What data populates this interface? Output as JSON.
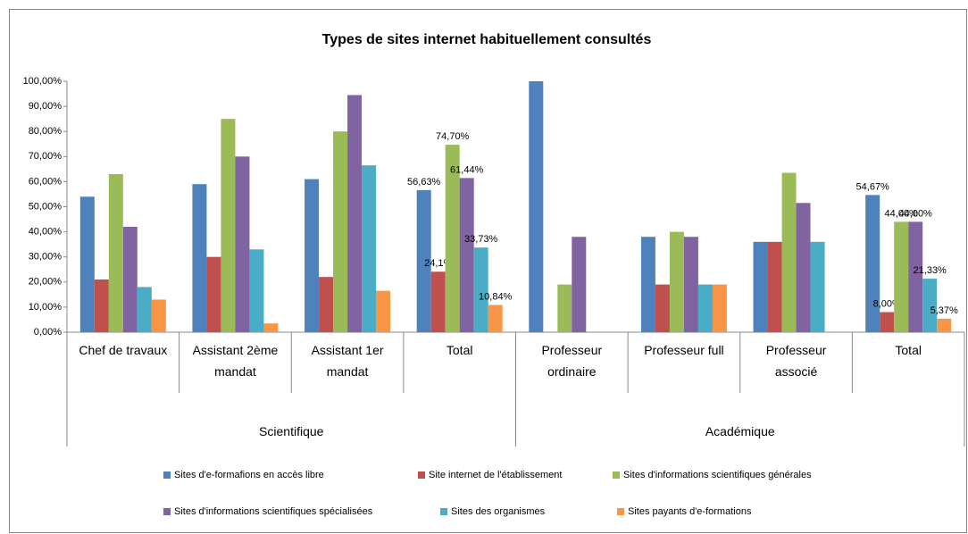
{
  "chart_data": {
    "type": "bar",
    "title": "Types de sites internet habituellement consultés",
    "categories": [
      "Chef de travaux",
      "Assistant 2ème mandat",
      "Assistant 1er mandat",
      "Total",
      "Professeur ordinaire",
      "Professeur full",
      "Professeur associé",
      "Total"
    ],
    "groups": [
      {
        "name": "Scientifique",
        "span": 4
      },
      {
        "name": "Académique",
        "span": 4
      }
    ],
    "series": [
      {
        "name": "Sites d'e-formafions en accès libre",
        "color": "#4f81bd",
        "values": [
          54,
          59,
          61,
          56.63,
          100,
          38,
          36,
          54.67
        ],
        "value_labels": [
          null,
          null,
          null,
          "56,63%",
          null,
          null,
          null,
          "54,67%"
        ]
      },
      {
        "name": "Site internet de l'établissement",
        "color": "#c0504d",
        "values": [
          21,
          30,
          22,
          24.1,
          0,
          19,
          36,
          8.0
        ],
        "value_labels": [
          null,
          null,
          null,
          "24,1%",
          null,
          null,
          null,
          "8,00%"
        ]
      },
      {
        "name": "Sites d'informations scientifiques générales",
        "color": "#9bbb59",
        "values": [
          63,
          85,
          80,
          74.7,
          19,
          40,
          63.5,
          44.0
        ],
        "value_labels": [
          null,
          null,
          null,
          "74,70%",
          null,
          null,
          null,
          "44,00%"
        ]
      },
      {
        "name": "Sites d'informations scientifiques spécialisées",
        "color": "#8064a2",
        "values": [
          42,
          70,
          94.5,
          61.44,
          38,
          38,
          51.5,
          44.0
        ],
        "value_labels": [
          null,
          null,
          null,
          "61,44%",
          null,
          null,
          null,
          "44,00%"
        ]
      },
      {
        "name": "Sites des organismes",
        "color": "#4bacc6",
        "values": [
          18,
          33,
          66.5,
          33.73,
          0,
          19,
          36,
          21.33
        ],
        "value_labels": [
          null,
          null,
          null,
          "33,73%",
          null,
          null,
          null,
          "21,33%"
        ]
      },
      {
        "name": "Sites payants d'e-formations",
        "color": "#f79646",
        "values": [
          13,
          3.5,
          16.5,
          10.84,
          0,
          19,
          0,
          5.37
        ],
        "value_labels": [
          null,
          null,
          null,
          "10,84%",
          null,
          null,
          null,
          "5,37%"
        ]
      }
    ],
    "ylim": [
      0,
      100
    ],
    "yticks": [
      {
        "value": 0,
        "label": "0,00%"
      },
      {
        "value": 10,
        "label": "10,00%"
      },
      {
        "value": 20,
        "label": "20,00%"
      },
      {
        "value": 30,
        "label": "30,00%"
      },
      {
        "value": 40,
        "label": "40,00%"
      },
      {
        "value": 50,
        "label": "50,00%"
      },
      {
        "value": 60,
        "label": "60,00%"
      },
      {
        "value": 70,
        "label": "70,00%"
      },
      {
        "value": 80,
        "label": "80,00%"
      },
      {
        "value": 90,
        "label": "90,00%"
      },
      {
        "value": 100,
        "label": "100,00%"
      }
    ],
    "grid": false
  }
}
